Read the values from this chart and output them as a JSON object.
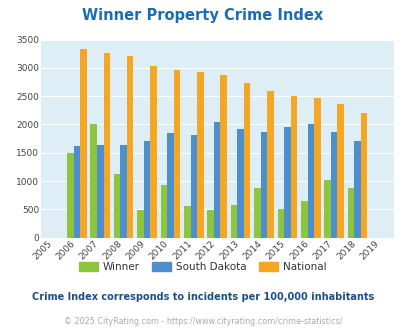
{
  "title": "Winner Property Crime Index",
  "title_color": "#1a6db5",
  "years": [
    2005,
    2006,
    2007,
    2008,
    2009,
    2010,
    2011,
    2012,
    2013,
    2014,
    2015,
    2016,
    2017,
    2018,
    2019
  ],
  "winner": [
    0,
    1500,
    2000,
    1125,
    490,
    930,
    560,
    490,
    570,
    875,
    510,
    640,
    1020,
    870,
    0
  ],
  "south_dakota": [
    0,
    1620,
    1640,
    1640,
    1700,
    1850,
    1820,
    2050,
    1920,
    1870,
    1950,
    2000,
    1870,
    1710,
    0
  ],
  "national": [
    0,
    3340,
    3260,
    3210,
    3040,
    2960,
    2920,
    2870,
    2740,
    2600,
    2500,
    2460,
    2370,
    2200,
    0
  ],
  "winner_color": "#8dc53e",
  "sd_color": "#4d8ecc",
  "national_color": "#f5a623",
  "bg_color": "#ddeef6",
  "ylim": [
    0,
    3500
  ],
  "yticks": [
    0,
    500,
    1000,
    1500,
    2000,
    2500,
    3000,
    3500
  ],
  "legend_labels": [
    "Winner",
    "South Dakota",
    "National"
  ],
  "footnote1": "Crime Index corresponds to incidents per 100,000 inhabitants",
  "footnote2": "© 2025 CityRating.com - https://www.cityrating.com/crime-statistics/",
  "footnote1_color": "#1a4f8a",
  "footnote2_color": "#aaaaaa",
  "grid_color": "#ffffff",
  "bar_width": 0.28
}
